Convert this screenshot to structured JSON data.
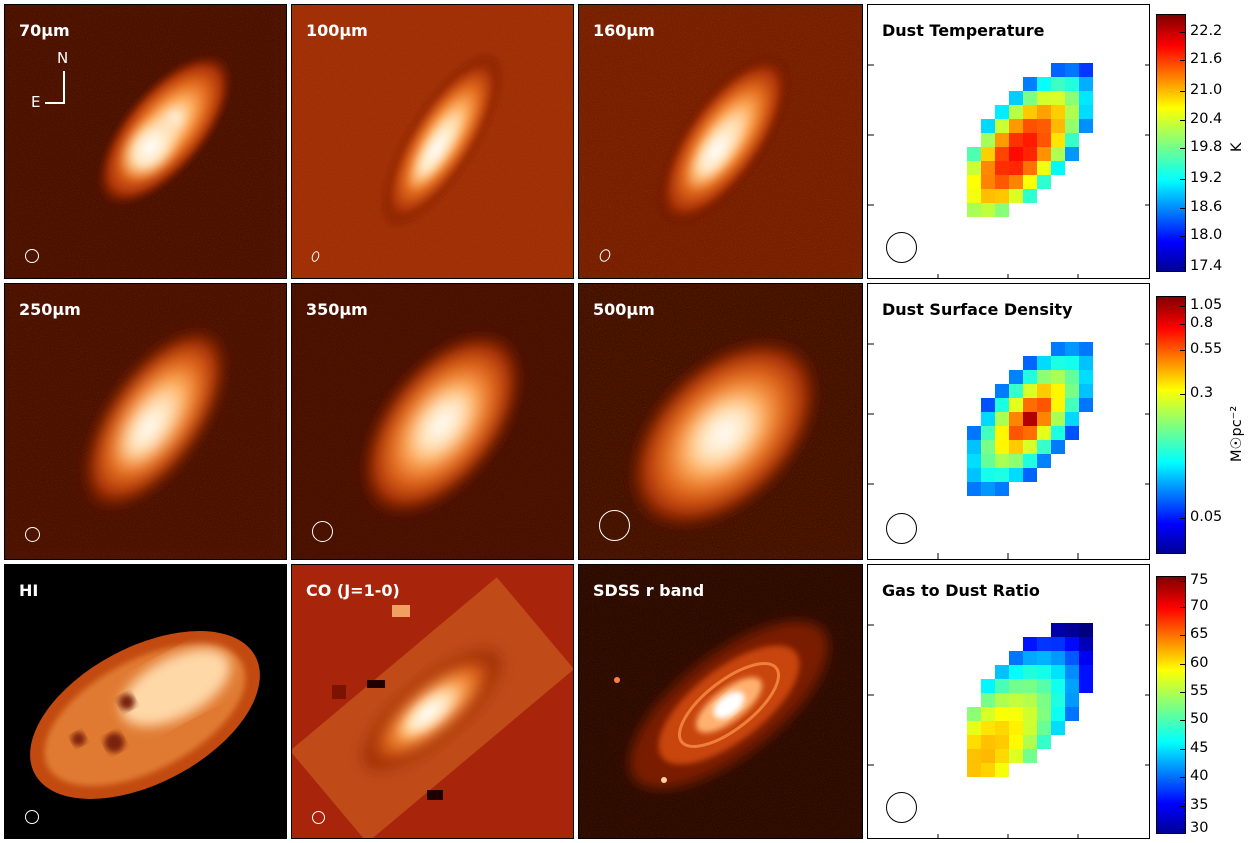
{
  "panels": {
    "p70": {
      "label": "70μm"
    },
    "p100": {
      "label": "100μm"
    },
    "p160": {
      "label": "160μm"
    },
    "ptemp": {
      "label": "Dust Temperature"
    },
    "p250": {
      "label": "250μm"
    },
    "p350": {
      "label": "350μm"
    },
    "p500": {
      "label": "500μm"
    },
    "pdens": {
      "label": "Dust Surface Density"
    },
    "phi": {
      "label": "HI"
    },
    "pco": {
      "label": "CO (J=1-0)"
    },
    "psdss": {
      "label": "SDSS r band"
    },
    "pg2d": {
      "label": "Gas to Dust Ratio"
    }
  },
  "compass": {
    "north": "N",
    "east": "E"
  },
  "colorbars": {
    "temperature": {
      "title": "K",
      "ticks": [
        "22.2",
        "21.6",
        "21.0",
        "20.4",
        "19.8",
        "19.2",
        "18.6",
        "18.0",
        "17.4"
      ]
    },
    "density": {
      "title": "M☉pc⁻²",
      "ticks": [
        "1.05",
        "0.8",
        "0.55",
        "0.3",
        "0.05"
      ]
    },
    "ratio": {
      "title": "",
      "ticks": [
        "75",
        "70",
        "65",
        "60",
        "55",
        "50",
        "45",
        "40",
        "35",
        "30"
      ]
    }
  },
  "colors": {
    "heat_dark": "#2a0400",
    "heat_mid": "#c8400a",
    "heat_bright": "#fff6e8",
    "co_bg": "#a8250b"
  }
}
